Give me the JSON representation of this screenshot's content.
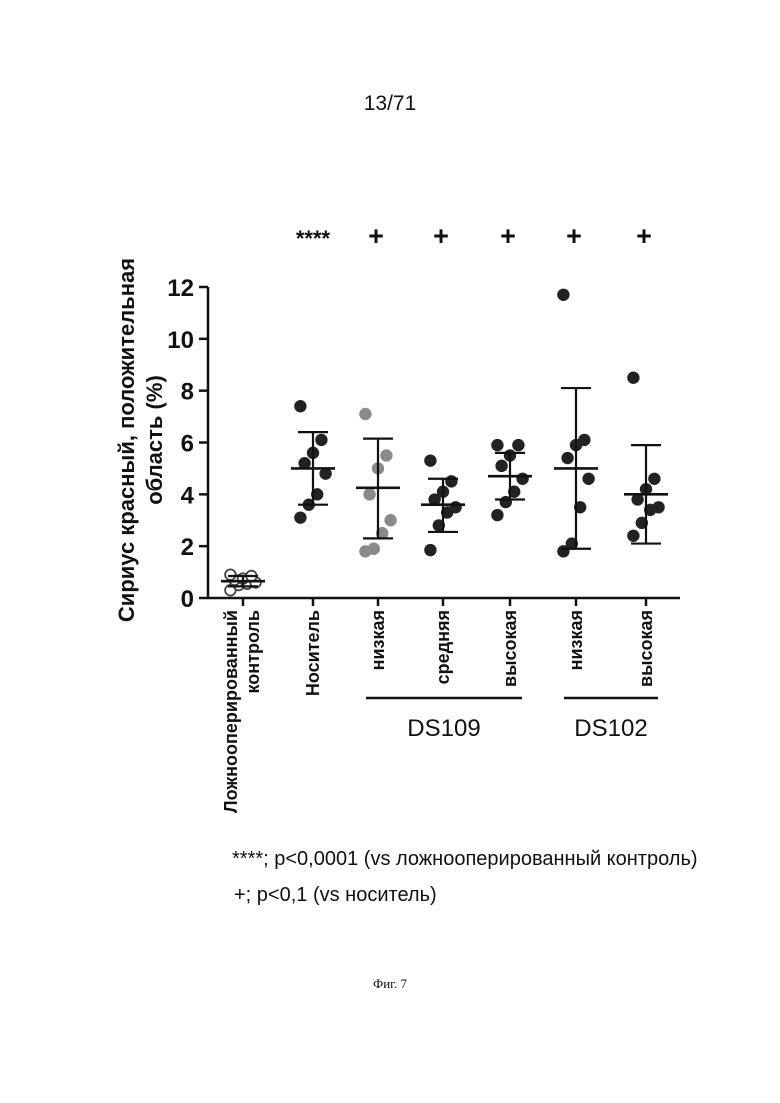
{
  "page": {
    "number": "13/71",
    "caption": "Фиг. 7"
  },
  "chart_data": {
    "type": "scatter",
    "ylabel": "Сириус красный, положительная область (%)",
    "ylim": [
      0,
      12
    ],
    "yticks": [
      "0",
      "2",
      "4",
      "6",
      "8",
      "10",
      "12"
    ],
    "groups": [
      {
        "label": "Ложнооперированный контроль",
        "mean": 0.65,
        "sd_low": 0.45,
        "sd_high": 0.85,
        "points": [
          0.3,
          0.5,
          0.55,
          0.6,
          0.7,
          0.75,
          0.85,
          0.9
        ],
        "marker": "open",
        "significance": ""
      },
      {
        "label": "Носитель",
        "mean": 5.0,
        "sd_low": 3.6,
        "sd_high": 6.4,
        "points": [
          3.1,
          3.6,
          4.0,
          4.8,
          5.2,
          5.6,
          6.1,
          7.4
        ],
        "marker": "filled",
        "significance": "****"
      },
      {
        "label": "низкая",
        "mean": 4.25,
        "sd_low": 2.3,
        "sd_high": 6.15,
        "points": [
          1.8,
          1.9,
          2.5,
          3.0,
          4.0,
          5.0,
          5.5,
          7.1
        ],
        "marker": "grey",
        "significance": "+"
      },
      {
        "label": "средняя",
        "mean": 3.6,
        "sd_low": 2.55,
        "sd_high": 4.6,
        "points": [
          1.85,
          2.8,
          3.3,
          3.5,
          3.8,
          4.1,
          4.5,
          5.3
        ],
        "marker": "filled",
        "significance": "+"
      },
      {
        "label": "высокая",
        "mean": 4.7,
        "sd_low": 3.8,
        "sd_high": 5.6,
        "points": [
          3.2,
          3.7,
          4.1,
          4.6,
          5.1,
          5.5,
          5.9,
          5.9
        ],
        "marker": "filled",
        "significance": "+"
      },
      {
        "label": "низкая",
        "mean": 5.0,
        "sd_low": 1.9,
        "sd_high": 8.1,
        "points": [
          1.8,
          2.1,
          3.5,
          4.6,
          5.4,
          5.9,
          6.1,
          11.7
        ],
        "marker": "filled",
        "significance": "+"
      },
      {
        "label": "высокая",
        "mean": 4.0,
        "sd_low": 2.1,
        "sd_high": 5.9,
        "points": [
          2.4,
          2.9,
          3.4,
          3.5,
          3.8,
          4.2,
          4.6,
          8.5
        ],
        "marker": "filled",
        "significance": "+"
      }
    ],
    "brackets": [
      {
        "label": "DS109",
        "from_group": 2,
        "to_group": 4
      },
      {
        "label": "DS102",
        "from_group": 5,
        "to_group": 6
      }
    ],
    "footnotes": [
      "****; p<0,0001 (vs ложнооперированный контроль)",
      "+; p<0,1 (vs носитель)"
    ]
  }
}
